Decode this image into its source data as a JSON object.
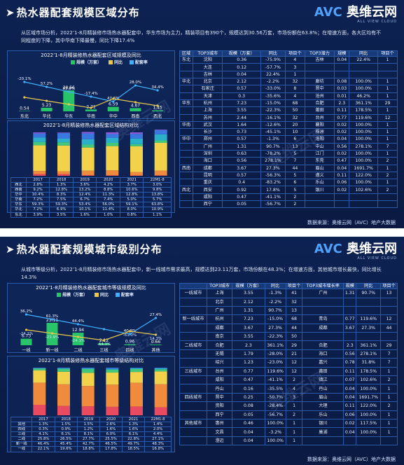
{
  "slide1": {
    "title": "热水器配套规模区域分布",
    "logo": {
      "brand": "奥维云网",
      "sub": "ALL VIEW CLOUD"
    },
    "intro": "从区域市场分析，2022’1-8月精装修市场热水器配套中，华东市场为主力，精装项目有390个，规模达到30.56万套，市场份额在63.8%；在增速方面，各大区均有不同程度的下降，其中华南下降最慢，同比下降17.4%",
    "bar_title": "2022’1-8月精装修热水器配套区域规模及同比",
    "legend": {
      "scale": "规模（万套）",
      "yoy": "同比",
      "share": "配套率"
    },
    "regions": [
      "东北",
      "华北",
      "华东",
      "华南",
      "华中",
      "西南",
      "西北"
    ],
    "scale": [
      0.54,
      5.23,
      30.56,
      2.71,
      6.59,
      4.67,
      1.45
    ],
    "yoy_labels": [
      "-20.1%",
      "57.2%",
      "63.8%",
      "-17.4%",
      "47.6%",
      "28.0%",
      "34.4%"
    ],
    "share_labels": [
      "23.9%",
      "",
      "",
      "",
      "",
      "",
      ""
    ],
    "stack_title": "2022’1-8月精装修热水器配套区域结构对比",
    "stack_years": [
      "2017",
      "2018",
      "2019",
      "2020",
      "2021",
      "22M1-8"
    ],
    "stack_rows": [
      {
        "name": "西北",
        "v": [
          "2.8%",
          "1.3%",
          "3.6%",
          "4.2%",
          "3.7%",
          "3.0%"
        ]
      },
      {
        "name": "西南",
        "v": [
          "9.2%",
          "12.8%",
          "13.2%",
          "8.8%",
          "10.6%",
          "9.8%"
        ]
      },
      {
        "name": "华中",
        "v": [
          "10.4%",
          "8.3%",
          "12.4%",
          "11.3%",
          "12.8%",
          "13.8%"
        ]
      },
      {
        "name": "华南",
        "v": [
          "7.2%",
          "7.5%",
          "6.7%",
          "7.4%",
          "5.0%",
          "5.7%"
        ]
      },
      {
        "name": "华东",
        "v": [
          "59.3%",
          "59.3%",
          "53.4%",
          "56.0%",
          "59.1%",
          "63.8%"
        ]
      },
      {
        "name": "华北",
        "v": [
          "7.2%",
          "6.9%",
          "10.1%",
          "11.4%",
          "8.0%",
          "10.9%"
        ]
      },
      {
        "name": "东北",
        "v": [
          "3.9%",
          "3.5%",
          "1.6%",
          "1.0%",
          "0.8%",
          "1.1%"
        ]
      }
    ],
    "table_headers": [
      "区域",
      "TOP3城市",
      "规模（万套）",
      "同比",
      "项目个",
      "TOP3潜力",
      "规模",
      "同比",
      "项目个"
    ],
    "table_rows": [
      [
        "东北",
        "沈阳",
        "0.36",
        "-75.9%",
        "4",
        "吉林",
        "0.04",
        "22.4%",
        "1"
      ],
      [
        "",
        "大连",
        "0.12",
        "-57.7%",
        "3",
        "",
        "",
        "",
        ""
      ],
      [
        "",
        "吉林",
        "0.04",
        "22.4%",
        "1",
        "",
        "",
        "",
        ""
      ],
      [
        "华北",
        "北京",
        "2.12",
        "-2.2%",
        "32",
        "廊坊",
        "0.08",
        "100.0%",
        "1"
      ],
      [
        "",
        "石家庄",
        "0.57",
        "-33.0%",
        "8",
        "晋中",
        "0.03",
        "100.0%",
        "1"
      ],
      [
        "",
        "天津",
        "0.3",
        "-35.6%",
        "4",
        "沧州",
        "0.01",
        "46.2%",
        "1"
      ],
      [
        "华东",
        "杭州",
        "7.23",
        "-15.0%",
        "68",
        "合肥",
        "2.3",
        "361.1%",
        "29"
      ],
      [
        "",
        "上海",
        "3.55",
        "-22.3%",
        "50",
        "莆田",
        "0.11",
        "178.5%",
        "1"
      ],
      [
        "",
        "苏州",
        "2.44",
        "-16.1%",
        "32",
        "台州",
        "0.77",
        "119.6%",
        "12"
      ],
      [
        "华南",
        "武汉",
        "1.64",
        "-12.6%",
        "20",
        "襄阳",
        "0.02",
        "100.0%",
        "1"
      ],
      [
        "",
        "长沙",
        "0.73",
        "-45.1%",
        "10",
        "株洲",
        "0.02",
        "100.0%",
        "1"
      ],
      [
        "华中",
        "郑州",
        "0.57",
        "-1.3%",
        "6",
        "洛阳",
        "0.04",
        "100.0%",
        "1"
      ],
      [
        "",
        "广州",
        "1.31",
        "90.7%",
        "13",
        "中山",
        "0.56",
        "278.1%",
        "7"
      ],
      [
        "",
        "深圳",
        "0.63",
        "-78.2%",
        "5",
        "江门",
        "0.02",
        "100.0%",
        "1"
      ],
      [
        "",
        "海口",
        "0.56",
        "278.1%",
        "7",
        "东莞",
        "0.47",
        "100.0%",
        "2"
      ],
      [
        "西南",
        "成都",
        "3.67",
        "27.3%",
        "44",
        "眉山",
        "0.04",
        "1691.7%",
        "1"
      ],
      [
        "",
        "昆明",
        "0.57",
        "-56.3%",
        "5",
        "遵义",
        "0.11",
        "122.0%",
        "2"
      ],
      [
        "",
        "重庆",
        "0.4",
        "-83.2%",
        "6",
        "乐山",
        "0.06",
        "100.0%",
        "1"
      ],
      [
        "西北",
        "西安",
        "0.92",
        "17.8%",
        "5",
        "银川",
        "0.02",
        "102.6%",
        "2"
      ],
      [
        "",
        "咸阳",
        "0.47",
        "-41.1%",
        "2",
        "",
        "",
        "",
        ""
      ],
      [
        "",
        "西宁",
        "0.05",
        "-56.7%",
        "2",
        "",
        "",
        "",
        ""
      ]
    ],
    "source": "数据来源：奥维云网（AVC）地产大数据"
  },
  "slide2": {
    "title": "热水器配套规模城市级别分布",
    "logo": {
      "brand": "奥维云网",
      "sub": "ALL VIEW CLOUD"
    },
    "intro": "从城市等级分析，2022’1-8月精装修市场热水器配套中，新一线城市需求最高，规模达到23.11万套，市场份额在48.3%；在增速方面，其他城市增长最快，同比增长14.3%",
    "bar_title": "2022’1-8月精装修热水器配套城市等级规模及同比",
    "legend": {
      "scale": "规模（万套）",
      "yoy": "同比",
      "share": "配套率"
    },
    "tiers": [
      "一线",
      "新一线",
      "二线",
      "三线",
      "四线",
      "其他"
    ],
    "scale": [
      6.73,
      23.11,
      12.94,
      2.12,
      0.96,
      0.66
    ],
    "yoy_labels": [
      "36.2%",
      "61.3%",
      "44.4%",
      "",
      "40.9%",
      "27.4%"
    ],
    "yoy2_labels": [
      "-24.1%",
      "-22.9%",
      "-24.1%",
      "-64.3%",
      "-61.0%",
      "14.3%"
    ],
    "stack_title": "2022’1-8月精装修热水器配套城市等级结构对比",
    "stack_years": [
      "2017",
      "2018",
      "2019",
      "2020",
      "2021",
      "22M1-8"
    ],
    "stack_rows": [
      {
        "name": "其他",
        "v": [
          "1.3%",
          "1.5%",
          "1.5%",
          "2.6%",
          "1.3%",
          "1.4%"
        ]
      },
      {
        "name": "四线",
        "v": [
          "0.3%",
          "0.9%",
          "1.2%",
          "1.6%",
          "1.6%",
          "2.0%"
        ]
      },
      {
        "name": "三线",
        "v": [
          "4.1%",
          "6.1%",
          "8.1%",
          "6.0%",
          "6.1%",
          "4.4%"
        ]
      },
      {
        "name": "二线",
        "v": [
          "25.8%",
          "26.5%",
          "27.7%",
          "25.5%",
          "22.8%",
          "27.1%"
        ]
      },
      {
        "name": "新一线",
        "v": [
          "46.4%",
          "45.4%",
          "42.7%",
          "46.5%",
          "49.7%",
          "48.3%"
        ]
      },
      {
        "name": "一线",
        "v": [
          "22.1%",
          "19.6%",
          "18.8%",
          "17.8%",
          "18.5%",
          "16.8%"
        ]
      }
    ],
    "table_headers": [
      "",
      "TOP3城市",
      "规模（万套）",
      "同比",
      "项目个",
      "TOP3城市增长率",
      "规模",
      "同比",
      "项目个"
    ],
    "table_rows": [
      [
        "一线城市",
        "上海",
        "3.55",
        "-1.3%",
        "41",
        "广州",
        "1.31",
        "90.7%",
        "13"
      ],
      [
        "",
        "北京",
        "2.12",
        "-2.2%",
        "32",
        "",
        "",
        "",
        ""
      ],
      [
        "",
        "广州",
        "1.31",
        "90.7%",
        "13",
        "",
        "",
        "",
        ""
      ],
      [
        "新一线城市",
        "杭州",
        "7.23",
        "-15.0%",
        "68",
        "青岛",
        "0.77",
        "119.6%",
        "12"
      ],
      [
        "",
        "成都",
        "3.67",
        "27.3%",
        "44",
        "成都",
        "3.67",
        "27.3%",
        "44"
      ],
      [
        "",
        "南京",
        "3.55",
        "-22.3%",
        "50",
        "",
        "",
        "",
        ""
      ],
      [
        "二线城市",
        "合肥",
        "2.3",
        "361.1%",
        "29",
        "合肥",
        "2.3",
        "361.1%",
        "29"
      ],
      [
        "",
        "无锡",
        "1.79",
        "-28.0%",
        "21",
        "海口",
        "0.56",
        "278.1%",
        "7"
      ],
      [
        "",
        "绍兴",
        "1.23",
        "-23.0%",
        "12",
        "嘉兴",
        "0.78",
        "31.8%",
        "7"
      ],
      [
        "三线城市",
        "台州",
        "0.77",
        "119.6%",
        "12",
        "莆田",
        "0.11",
        "178.5%",
        "1"
      ],
      [
        "",
        "咸阳",
        "0.47",
        "-41.1%",
        "2",
        "镇江",
        "0.07",
        "102.6%",
        "2"
      ],
      [
        "",
        "丹山",
        "0.16",
        "-35.5%",
        "4",
        "丹山",
        "0.04",
        "100.0%",
        "1"
      ],
      [
        "四线城市",
        "晋中",
        "0.25",
        "-50.7%",
        "3",
        "眉山",
        "0.04",
        "1691.7%",
        "1"
      ],
      [
        "",
        "资阳",
        "0.08",
        "-28.4%",
        "1",
        "大理",
        "0.11",
        "122.0%",
        "2"
      ],
      [
        "",
        "西宁",
        "0.05",
        "-56.7%",
        "2",
        "乐山",
        "0.06",
        "100.0%",
        "1"
      ],
      [
        "其他城市",
        "惠州",
        "0.46",
        "100.0%",
        "1",
        "银川",
        "0.02",
        "117.5%",
        "1"
      ],
      [
        "",
        "文昌",
        "0.04",
        "-3.2%",
        "1",
        "巢湖",
        "0.04",
        "100.0%",
        "1"
      ],
      [
        "",
        "澄迈",
        "0.04",
        "100.0%",
        "1",
        "",
        "",
        "",
        ""
      ]
    ],
    "source": "数据来源：奥维云网（AVC）地产大数据"
  },
  "colors": {
    "bar": "#29c46a",
    "line_yoy": "#e8c84a",
    "line_share": "#3fb0ff",
    "stack": [
      "#e84a5f",
      "#f08a3c",
      "#f2d24a",
      "#43c77a",
      "#2ab0c8",
      "#3a78e0",
      "#8a5ad8"
    ]
  },
  "chart_data": [
    {
      "type": "bar",
      "title": "2022’1-8月精装修热水器配套区域规模及同比",
      "categories": [
        "东北",
        "华北",
        "华东",
        "华南",
        "华中",
        "西南",
        "西北"
      ],
      "series": [
        {
          "name": "规模（万套）",
          "values": [
            0.54,
            5.23,
            30.56,
            2.71,
            6.59,
            4.67,
            1.45
          ]
        }
      ]
    },
    {
      "type": "bar",
      "title": "2022’1-8月精装修热水器配套城市等级规模及同比",
      "categories": [
        "一线",
        "新一线",
        "二线",
        "三线",
        "四线",
        "其他"
      ],
      "series": [
        {
          "name": "规模（万套）",
          "values": [
            6.73,
            23.11,
            12.94,
            2.12,
            0.96,
            0.66
          ]
        }
      ]
    }
  ]
}
